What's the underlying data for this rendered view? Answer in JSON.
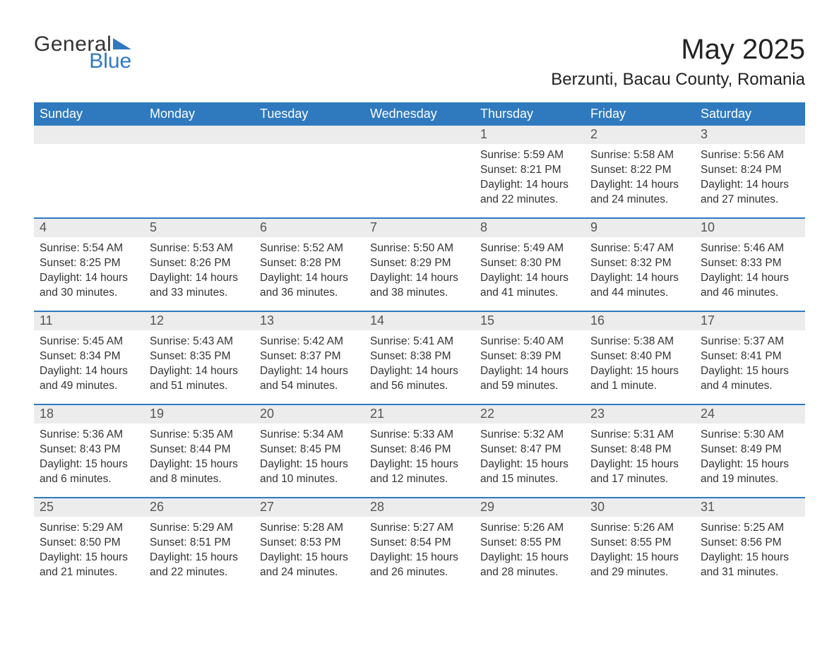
{
  "logo": {
    "word1": "General",
    "word2": "Blue",
    "triangle_color": "#2f7abf"
  },
  "header": {
    "month_title": "May 2025",
    "location": "Berzunti, Bacau County, Romania"
  },
  "colors": {
    "header_bg": "#2f7abf",
    "header_text": "#ffffff",
    "daynum_bg": "#ececec",
    "daynum_text": "#555555",
    "body_text": "#333333",
    "page_bg": "#ffffff",
    "week_separator": "#2f7abf"
  },
  "typography": {
    "month_title_fontsize": 40,
    "location_fontsize": 24,
    "weekday_fontsize": 18,
    "daynum_fontsize": 18,
    "body_fontsize": 15.5
  },
  "calendar": {
    "type": "table",
    "columns": [
      "Sunday",
      "Monday",
      "Tuesday",
      "Wednesday",
      "Thursday",
      "Friday",
      "Saturday"
    ],
    "weeks": [
      [
        {
          "empty": true
        },
        {
          "empty": true
        },
        {
          "empty": true
        },
        {
          "empty": true
        },
        {
          "day": "1",
          "sunrise": "Sunrise: 5:59 AM",
          "sunset": "Sunset: 8:21 PM",
          "daylight": "Daylight: 14 hours and 22 minutes."
        },
        {
          "day": "2",
          "sunrise": "Sunrise: 5:58 AM",
          "sunset": "Sunset: 8:22 PM",
          "daylight": "Daylight: 14 hours and 24 minutes."
        },
        {
          "day": "3",
          "sunrise": "Sunrise: 5:56 AM",
          "sunset": "Sunset: 8:24 PM",
          "daylight": "Daylight: 14 hours and 27 minutes."
        }
      ],
      [
        {
          "day": "4",
          "sunrise": "Sunrise: 5:54 AM",
          "sunset": "Sunset: 8:25 PM",
          "daylight": "Daylight: 14 hours and 30 minutes."
        },
        {
          "day": "5",
          "sunrise": "Sunrise: 5:53 AM",
          "sunset": "Sunset: 8:26 PM",
          "daylight": "Daylight: 14 hours and 33 minutes."
        },
        {
          "day": "6",
          "sunrise": "Sunrise: 5:52 AM",
          "sunset": "Sunset: 8:28 PM",
          "daylight": "Daylight: 14 hours and 36 minutes."
        },
        {
          "day": "7",
          "sunrise": "Sunrise: 5:50 AM",
          "sunset": "Sunset: 8:29 PM",
          "daylight": "Daylight: 14 hours and 38 minutes."
        },
        {
          "day": "8",
          "sunrise": "Sunrise: 5:49 AM",
          "sunset": "Sunset: 8:30 PM",
          "daylight": "Daylight: 14 hours and 41 minutes."
        },
        {
          "day": "9",
          "sunrise": "Sunrise: 5:47 AM",
          "sunset": "Sunset: 8:32 PM",
          "daylight": "Daylight: 14 hours and 44 minutes."
        },
        {
          "day": "10",
          "sunrise": "Sunrise: 5:46 AM",
          "sunset": "Sunset: 8:33 PM",
          "daylight": "Daylight: 14 hours and 46 minutes."
        }
      ],
      [
        {
          "day": "11",
          "sunrise": "Sunrise: 5:45 AM",
          "sunset": "Sunset: 8:34 PM",
          "daylight": "Daylight: 14 hours and 49 minutes."
        },
        {
          "day": "12",
          "sunrise": "Sunrise: 5:43 AM",
          "sunset": "Sunset: 8:35 PM",
          "daylight": "Daylight: 14 hours and 51 minutes."
        },
        {
          "day": "13",
          "sunrise": "Sunrise: 5:42 AM",
          "sunset": "Sunset: 8:37 PM",
          "daylight": "Daylight: 14 hours and 54 minutes."
        },
        {
          "day": "14",
          "sunrise": "Sunrise: 5:41 AM",
          "sunset": "Sunset: 8:38 PM",
          "daylight": "Daylight: 14 hours and 56 minutes."
        },
        {
          "day": "15",
          "sunrise": "Sunrise: 5:40 AM",
          "sunset": "Sunset: 8:39 PM",
          "daylight": "Daylight: 14 hours and 59 minutes."
        },
        {
          "day": "16",
          "sunrise": "Sunrise: 5:38 AM",
          "sunset": "Sunset: 8:40 PM",
          "daylight": "Daylight: 15 hours and 1 minute."
        },
        {
          "day": "17",
          "sunrise": "Sunrise: 5:37 AM",
          "sunset": "Sunset: 8:41 PM",
          "daylight": "Daylight: 15 hours and 4 minutes."
        }
      ],
      [
        {
          "day": "18",
          "sunrise": "Sunrise: 5:36 AM",
          "sunset": "Sunset: 8:43 PM",
          "daylight": "Daylight: 15 hours and 6 minutes."
        },
        {
          "day": "19",
          "sunrise": "Sunrise: 5:35 AM",
          "sunset": "Sunset: 8:44 PM",
          "daylight": "Daylight: 15 hours and 8 minutes."
        },
        {
          "day": "20",
          "sunrise": "Sunrise: 5:34 AM",
          "sunset": "Sunset: 8:45 PM",
          "daylight": "Daylight: 15 hours and 10 minutes."
        },
        {
          "day": "21",
          "sunrise": "Sunrise: 5:33 AM",
          "sunset": "Sunset: 8:46 PM",
          "daylight": "Daylight: 15 hours and 12 minutes."
        },
        {
          "day": "22",
          "sunrise": "Sunrise: 5:32 AM",
          "sunset": "Sunset: 8:47 PM",
          "daylight": "Daylight: 15 hours and 15 minutes."
        },
        {
          "day": "23",
          "sunrise": "Sunrise: 5:31 AM",
          "sunset": "Sunset: 8:48 PM",
          "daylight": "Daylight: 15 hours and 17 minutes."
        },
        {
          "day": "24",
          "sunrise": "Sunrise: 5:30 AM",
          "sunset": "Sunset: 8:49 PM",
          "daylight": "Daylight: 15 hours and 19 minutes."
        }
      ],
      [
        {
          "day": "25",
          "sunrise": "Sunrise: 5:29 AM",
          "sunset": "Sunset: 8:50 PM",
          "daylight": "Daylight: 15 hours and 21 minutes."
        },
        {
          "day": "26",
          "sunrise": "Sunrise: 5:29 AM",
          "sunset": "Sunset: 8:51 PM",
          "daylight": "Daylight: 15 hours and 22 minutes."
        },
        {
          "day": "27",
          "sunrise": "Sunrise: 5:28 AM",
          "sunset": "Sunset: 8:53 PM",
          "daylight": "Daylight: 15 hours and 24 minutes."
        },
        {
          "day": "28",
          "sunrise": "Sunrise: 5:27 AM",
          "sunset": "Sunset: 8:54 PM",
          "daylight": "Daylight: 15 hours and 26 minutes."
        },
        {
          "day": "29",
          "sunrise": "Sunrise: 5:26 AM",
          "sunset": "Sunset: 8:55 PM",
          "daylight": "Daylight: 15 hours and 28 minutes."
        },
        {
          "day": "30",
          "sunrise": "Sunrise: 5:26 AM",
          "sunset": "Sunset: 8:55 PM",
          "daylight": "Daylight: 15 hours and 29 minutes."
        },
        {
          "day": "31",
          "sunrise": "Sunrise: 5:25 AM",
          "sunset": "Sunset: 8:56 PM",
          "daylight": "Daylight: 15 hours and 31 minutes."
        }
      ]
    ]
  }
}
